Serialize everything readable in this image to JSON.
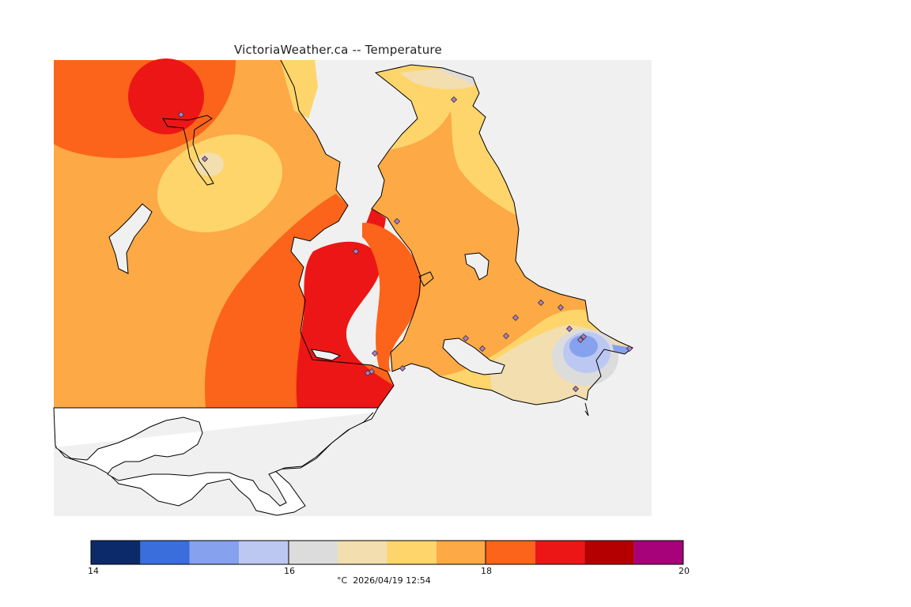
{
  "title": "VictoriaWeather.ca -- Temperature",
  "caption": {
    "unit": "°C",
    "timestamp": "2026/04/19 12:54"
  },
  "legend": {
    "ticks": [
      "14",
      "16",
      "18",
      "20"
    ],
    "bins": [
      {
        "from": 14.0,
        "to": 14.5,
        "color": "#0c2a6a"
      },
      {
        "from": 14.5,
        "to": 15.0,
        "color": "#3a6edc"
      },
      {
        "from": 15.0,
        "to": 15.5,
        "color": "#86a2ee"
      },
      {
        "from": 15.5,
        "to": 16.0,
        "color": "#bcc8f2"
      },
      {
        "from": 16.0,
        "to": 16.5,
        "color": "#dcdcdc"
      },
      {
        "from": 16.5,
        "to": 17.0,
        "color": "#f2deae"
      },
      {
        "from": 17.0,
        "to": 17.5,
        "color": "#fdd56b"
      },
      {
        "from": 17.5,
        "to": 18.0,
        "color": "#fca946"
      },
      {
        "from": 18.0,
        "to": 18.5,
        "color": "#fb641a"
      },
      {
        "from": 18.5,
        "to": 19.0,
        "color": "#ed1616"
      },
      {
        "from": 19.0,
        "to": 19.5,
        "color": "#b40000"
      },
      {
        "from": 19.5,
        "to": 20.0,
        "color": "#a8027a"
      }
    ]
  },
  "colors": {
    "water": "#f0f0f0",
    "land_outside": "#ffffff",
    "coastline": "#000000",
    "station_fill": "#b07cc6",
    "station_stroke": "#333333"
  },
  "stations": [
    {
      "id": "s1"
    },
    {
      "id": "s2"
    },
    {
      "id": "s3"
    },
    {
      "id": "s4"
    },
    {
      "id": "s5"
    },
    {
      "id": "s6"
    },
    {
      "id": "s7"
    },
    {
      "id": "s8"
    },
    {
      "id": "s9"
    },
    {
      "id": "s10"
    },
    {
      "id": "s11"
    },
    {
      "id": "s12"
    },
    {
      "id": "s13"
    },
    {
      "id": "s14"
    },
    {
      "id": "s15"
    },
    {
      "id": "s16"
    },
    {
      "id": "s17"
    },
    {
      "id": "s18"
    },
    {
      "id": "s19"
    },
    {
      "id": "s20"
    }
  ]
}
